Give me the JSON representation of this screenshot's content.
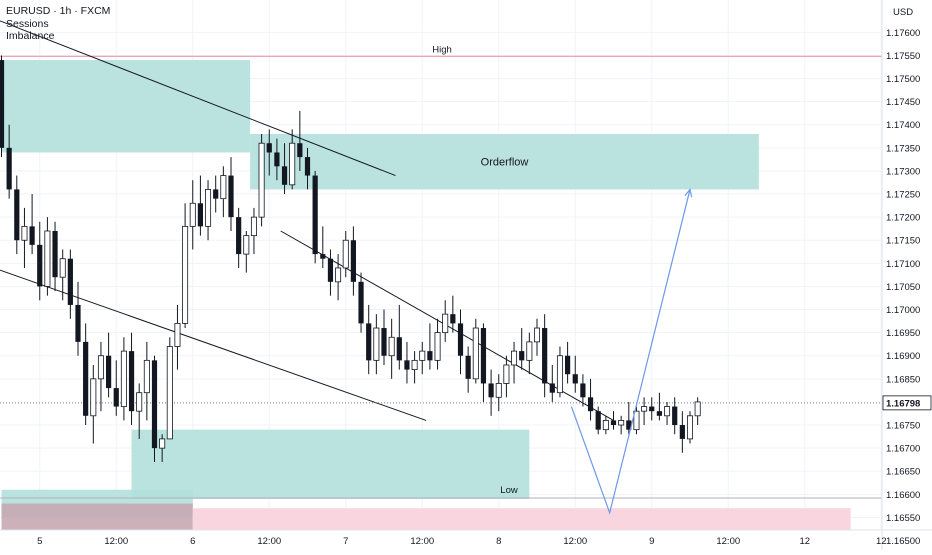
{
  "chart_data": {
    "type": "candlestick",
    "symbol": "EURUSD · 1h · FXCM",
    "indicators": [
      "Sessions",
      "Imbalance"
    ],
    "currency_label": "USD",
    "ylim": [
      1.1649,
      1.1767
    ],
    "y_ticks": [
      "1.17600",
      "1.17550",
      "1.17500",
      "1.17450",
      "1.17400",
      "1.17350",
      "1.17300",
      "1.17250",
      "1.17200",
      "1.17150",
      "1.17100",
      "1.17050",
      "1.17000",
      "1.16950",
      "1.16900",
      "1.16850",
      "1.16750",
      "1.16700",
      "1.16650",
      "1.16600",
      "1.16550",
      "1.16500"
    ],
    "x_ticks": [
      {
        "label": "5",
        "bar": 5
      },
      {
        "label": "12:00",
        "bar": 15
      },
      {
        "label": "6",
        "bar": 25
      },
      {
        "label": "12:00",
        "bar": 35
      },
      {
        "label": "7",
        "bar": 45
      },
      {
        "label": "12:00",
        "bar": 55
      },
      {
        "label": "8",
        "bar": 65
      },
      {
        "label": "12:00",
        "bar": 75
      },
      {
        "label": "9",
        "bar": 85
      },
      {
        "label": "12:00",
        "bar": 95
      },
      {
        "label": "12",
        "bar": 105
      },
      {
        "label": "12",
        "bar": 115
      }
    ],
    "current_price": "1.16798",
    "candles": [
      [
        1.1754,
        1.1755,
        1.1733,
        1.1735
      ],
      [
        1.1735,
        1.174,
        1.1724,
        1.1726
      ],
      [
        1.1726,
        1.1729,
        1.1712,
        1.1715
      ],
      [
        1.1715,
        1.1722,
        1.1709,
        1.1718
      ],
      [
        1.1718,
        1.1725,
        1.1712,
        1.1714
      ],
      [
        1.1714,
        1.1719,
        1.1702,
        1.1705
      ],
      [
        1.1705,
        1.172,
        1.1703,
        1.1717
      ],
      [
        1.1717,
        1.1719,
        1.1704,
        1.1707
      ],
      [
        1.1707,
        1.1713,
        1.1702,
        1.1711
      ],
      [
        1.1711,
        1.1713,
        1.1698,
        1.1701
      ],
      [
        1.1701,
        1.1706,
        1.169,
        1.1693
      ],
      [
        1.1693,
        1.1697,
        1.1675,
        1.1677
      ],
      [
        1.1677,
        1.1688,
        1.1671,
        1.1685
      ],
      [
        1.1685,
        1.1693,
        1.1678,
        1.169
      ],
      [
        1.169,
        1.1695,
        1.1681,
        1.1683
      ],
      [
        1.1683,
        1.1689,
        1.1677,
        1.1679
      ],
      [
        1.1679,
        1.1694,
        1.1676,
        1.1691
      ],
      [
        1.1691,
        1.1695,
        1.1675,
        1.1678
      ],
      [
        1.1678,
        1.1684,
        1.1672,
        1.1682
      ],
      [
        1.1682,
        1.1693,
        1.1676,
        1.1689
      ],
      [
        1.1689,
        1.169,
        1.1667,
        1.167
      ],
      [
        1.167,
        1.1673,
        1.1667,
        1.1672
      ],
      [
        1.1672,
        1.1694,
        1.1672,
        1.1692
      ],
      [
        1.1692,
        1.1701,
        1.1687,
        1.1697
      ],
      [
        1.1697,
        1.1723,
        1.1696,
        1.1718
      ],
      [
        1.1718,
        1.1728,
        1.1713,
        1.1723
      ],
      [
        1.1723,
        1.1729,
        1.1716,
        1.1718
      ],
      [
        1.1718,
        1.1728,
        1.1715,
        1.1726
      ],
      [
        1.1726,
        1.1729,
        1.1721,
        1.1724
      ],
      [
        1.1724,
        1.1731,
        1.172,
        1.1729
      ],
      [
        1.1729,
        1.1733,
        1.1717,
        1.172
      ],
      [
        1.172,
        1.1722,
        1.1709,
        1.1712
      ],
      [
        1.1712,
        1.1717,
        1.1708,
        1.1716
      ],
      [
        1.1716,
        1.1722,
        1.1712,
        1.172
      ],
      [
        1.172,
        1.1738,
        1.1718,
        1.1736
      ],
      [
        1.1736,
        1.1739,
        1.1729,
        1.1734
      ],
      [
        1.1734,
        1.1737,
        1.1728,
        1.1731
      ],
      [
        1.1731,
        1.1736,
        1.1725,
        1.1727
      ],
      [
        1.1727,
        1.1739,
        1.1726,
        1.1736
      ],
      [
        1.1736,
        1.1743,
        1.173,
        1.1733
      ],
      [
        1.1733,
        1.1735,
        1.1726,
        1.1729
      ],
      [
        1.1729,
        1.173,
        1.171,
        1.1712
      ],
      [
        1.1712,
        1.1718,
        1.1709,
        1.1711
      ],
      [
        1.1711,
        1.1713,
        1.1703,
        1.1706
      ],
      [
        1.1706,
        1.1712,
        1.1702,
        1.1709
      ],
      [
        1.1709,
        1.1717,
        1.1707,
        1.1715
      ],
      [
        1.1715,
        1.1718,
        1.1703,
        1.1706
      ],
      [
        1.1706,
        1.1708,
        1.1695,
        1.1697
      ],
      [
        1.1697,
        1.1701,
        1.1686,
        1.1689
      ],
      [
        1.1689,
        1.1699,
        1.1686,
        1.1696
      ],
      [
        1.1696,
        1.17,
        1.1688,
        1.169
      ],
      [
        1.169,
        1.1698,
        1.1685,
        1.1694
      ],
      [
        1.1694,
        1.1701,
        1.1687,
        1.1689
      ],
      [
        1.1689,
        1.1693,
        1.1684,
        1.1687
      ],
      [
        1.1687,
        1.1691,
        1.1684,
        1.1689
      ],
      [
        1.1689,
        1.1693,
        1.1686,
        1.1691
      ],
      [
        1.1691,
        1.1697,
        1.1687,
        1.1689
      ],
      [
        1.1689,
        1.1698,
        1.1687,
        1.1695
      ],
      [
        1.1695,
        1.1702,
        1.1693,
        1.1699
      ],
      [
        1.1699,
        1.1703,
        1.1695,
        1.1697
      ],
      [
        1.1697,
        1.17,
        1.1686,
        1.169
      ],
      [
        1.169,
        1.1692,
        1.1682,
        1.1685
      ],
      [
        1.1685,
        1.1698,
        1.1684,
        1.1696
      ],
      [
        1.1696,
        1.1697,
        1.168,
        1.1684
      ],
      [
        1.1684,
        1.1687,
        1.1677,
        1.1681
      ],
      [
        1.1681,
        1.1686,
        1.1678,
        1.1684
      ],
      [
        1.1684,
        1.169,
        1.1681,
        1.1688
      ],
      [
        1.1688,
        1.1693,
        1.1684,
        1.1691
      ],
      [
        1.1691,
        1.1696,
        1.1687,
        1.1689
      ],
      [
        1.1689,
        1.1695,
        1.1686,
        1.1693
      ],
      [
        1.1693,
        1.1698,
        1.169,
        1.1696
      ],
      [
        1.1696,
        1.1699,
        1.1681,
        1.1684
      ],
      [
        1.1684,
        1.1688,
        1.168,
        1.1682
      ],
      [
        1.1682,
        1.1692,
        1.1681,
        1.169
      ],
      [
        1.169,
        1.1693,
        1.1684,
        1.1686
      ],
      [
        1.1686,
        1.169,
        1.1682,
        1.1684
      ],
      [
        1.1684,
        1.1686,
        1.1679,
        1.1681
      ],
      [
        1.1681,
        1.1685,
        1.1676,
        1.1678
      ],
      [
        1.1678,
        1.1679,
        1.1673,
        1.1674
      ],
      [
        1.1674,
        1.1677,
        1.1673,
        1.1676
      ],
      [
        1.1676,
        1.1678,
        1.1674,
        1.1675
      ],
      [
        1.1675,
        1.1677,
        1.1673,
        1.1676
      ],
      [
        1.1676,
        1.168,
        1.1673,
        1.1674
      ],
      [
        1.1674,
        1.1679,
        1.1673,
        1.1678
      ],
      [
        1.1678,
        1.1681,
        1.1675,
        1.1679
      ],
      [
        1.1679,
        1.1681,
        1.1676,
        1.1678
      ],
      [
        1.1678,
        1.1682,
        1.1676,
        1.1677
      ],
      [
        1.1677,
        1.168,
        1.1675,
        1.1679
      ],
      [
        1.1679,
        1.1681,
        1.1673,
        1.1675
      ],
      [
        1.1675,
        1.1678,
        1.1669,
        1.1672
      ],
      [
        1.1672,
        1.1678,
        1.1671,
        1.1677
      ],
      [
        1.1677,
        1.1681,
        1.1675,
        1.168
      ]
    ],
    "annotations": {
      "high_label": "High",
      "low_label": "Low",
      "orderflow_label": "Orderflow",
      "high_price": 1.17548,
      "low_price": 1.16592
    },
    "zones": [
      {
        "type": "imbalance",
        "x0": 0,
        "x1": 32.5,
        "y0": 1.1734,
        "y1": 1.1754
      },
      {
        "type": "imbalance",
        "x0": 32.5,
        "x1": 99,
        "y0": 1.1726,
        "y1": 1.1738
      },
      {
        "type": "imbalance",
        "x0": 17,
        "x1": 69,
        "y0": 1.1659,
        "y1": 1.1674
      },
      {
        "type": "imbalance",
        "x0": 0,
        "x1": 25,
        "y0": 1.1655,
        "y1": 1.1661
      },
      {
        "type": "session",
        "x0": 0,
        "x1": 25,
        "y0": 1.1651,
        "y1": 1.1658
      },
      {
        "type": "pink",
        "x0": 25,
        "x1": 111,
        "y0": 1.1651,
        "y1": 1.1657
      }
    ],
    "trendlines": [
      {
        "x0": -1,
        "y0": 1.1763,
        "x1": 51.5,
        "y1": 1.1729
      },
      {
        "x0": -1,
        "y0": 1.1709,
        "x1": 55.5,
        "y1": 1.1676
      },
      {
        "x0": 36.5,
        "y0": 1.1717,
        "x1": 80,
        "y1": 1.1676
      }
    ],
    "projection": [
      {
        "x": 74.5,
        "y": 1.1679
      },
      {
        "x": 79.5,
        "y": 1.1656
      },
      {
        "x": 90,
        "y": 1.1726
      }
    ],
    "colors": {
      "candle": "#131722",
      "imbalance": "#b2dfdb",
      "session": "#c7a8b3",
      "pink": "#f8d1dc",
      "high_line": "#f0a3b2",
      "projection": "#6e97e6",
      "grid": "#f0f3fa"
    }
  }
}
